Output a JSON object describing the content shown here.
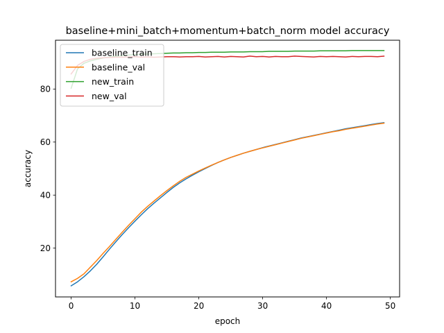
{
  "chart_data": {
    "type": "line",
    "title": "baseline+mini_batch+momentum+batch_norm model accuracy",
    "xlabel": "epoch",
    "ylabel": "accuracy",
    "xlim": [
      -2.45,
      51.45
    ],
    "ylim": [
      1.6,
      98.4
    ],
    "xticks": [
      0,
      10,
      20,
      30,
      40,
      50
    ],
    "yticks": [
      20,
      40,
      60,
      80
    ],
    "grid": false,
    "legend_position": "top-left",
    "x": [
      0,
      1,
      2,
      3,
      4,
      5,
      6,
      7,
      8,
      9,
      10,
      11,
      12,
      13,
      14,
      15,
      16,
      17,
      18,
      19,
      20,
      21,
      22,
      23,
      24,
      25,
      26,
      27,
      28,
      29,
      30,
      31,
      32,
      33,
      34,
      35,
      36,
      37,
      38,
      39,
      40,
      41,
      42,
      43,
      44,
      45,
      46,
      47,
      48,
      49
    ],
    "series": [
      {
        "name": "baseline_train",
        "color": "#1f77b4",
        "values": [
          5.8,
          7.3,
          9.2,
          11.4,
          13.9,
          16.7,
          19.6,
          22.4,
          25.1,
          27.7,
          30.2,
          32.6,
          34.9,
          37.0,
          39.0,
          41.0,
          42.9,
          44.6,
          46.1,
          47.5,
          48.8,
          50.0,
          51.2,
          52.3,
          53.3,
          54.2,
          55.0,
          55.8,
          56.5,
          57.2,
          57.9,
          58.5,
          59.1,
          59.7,
          60.3,
          60.9,
          61.5,
          62.0,
          62.5,
          63.0,
          63.5,
          64.0,
          64.5,
          65.0,
          65.4,
          65.8,
          66.2,
          66.6,
          67.0,
          67.3
        ]
      },
      {
        "name": "baseline_val",
        "color": "#ff7f0e",
        "values": [
          7.3,
          8.6,
          10.3,
          12.8,
          15.3,
          18.0,
          20.6,
          23.3,
          26.0,
          28.6,
          31.1,
          33.6,
          35.8,
          37.8,
          39.8,
          41.7,
          43.5,
          45.2,
          46.7,
          47.9,
          49.1,
          50.2,
          51.3,
          52.3,
          53.3,
          54.2,
          55.0,
          55.8,
          56.5,
          57.2,
          57.8,
          58.4,
          59.0,
          59.6,
          60.2,
          60.8,
          61.4,
          61.9,
          62.4,
          62.9,
          63.4,
          63.9,
          64.3,
          64.8,
          65.2,
          65.6,
          66.0,
          66.4,
          66.8,
          67.1
        ]
      },
      {
        "name": "new_train",
        "color": "#2ca02c",
        "values": [
          80.3,
          87.6,
          89.7,
          90.6,
          91.2,
          91.7,
          92.1,
          92.4,
          92.6,
          92.8,
          93.0,
          93.1,
          93.2,
          93.3,
          93.4,
          93.5,
          93.6,
          93.6,
          93.7,
          93.7,
          93.8,
          93.8,
          93.9,
          93.9,
          93.9,
          94.0,
          94.0,
          94.0,
          94.1,
          94.1,
          94.1,
          94.2,
          94.2,
          94.2,
          94.2,
          94.3,
          94.3,
          94.3,
          94.3,
          94.4,
          94.4,
          94.4,
          94.4,
          94.4,
          94.5,
          94.5,
          94.5,
          94.5,
          94.5,
          94.5
        ]
      },
      {
        "name": "new_val",
        "color": "#d62728",
        "values": [
          85.7,
          88.9,
          90.4,
          91.2,
          91.6,
          91.8,
          91.9,
          92.0,
          92.0,
          92.1,
          92.2,
          92.0,
          92.1,
          92.0,
          92.1,
          92.2,
          92.2,
          92.1,
          92.2,
          92.2,
          92.3,
          92.1,
          92.2,
          92.3,
          92.1,
          92.3,
          92.2,
          92.1,
          92.4,
          92.2,
          92.3,
          92.1,
          92.3,
          92.2,
          92.2,
          92.4,
          92.3,
          92.2,
          92.1,
          92.3,
          92.2,
          92.3,
          92.2,
          92.1,
          92.3,
          92.2,
          92.3,
          92.3,
          92.2,
          92.4
        ]
      }
    ]
  }
}
